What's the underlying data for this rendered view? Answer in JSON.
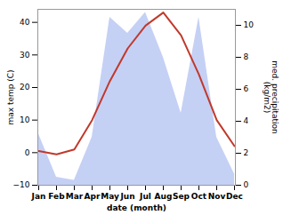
{
  "chart_data": {
    "type": "line",
    "xlabel": "date (month)",
    "ylabel": "max temp (C)",
    "y2label": "med. precipitation\n(kg/m2)",
    "categories": [
      "Jan",
      "Feb",
      "Mar",
      "Apr",
      "May",
      "Jun",
      "Jul",
      "Aug",
      "Sep",
      "Oct",
      "Nov",
      "Dec"
    ],
    "series": [
      {
        "type": "area",
        "axis": "y2",
        "color": "#c5d0f5",
        "values": [
          3.2,
          0.5,
          0.3,
          3.0,
          10.5,
          9.5,
          10.8,
          8.0,
          4.5,
          10.5,
          3.0,
          0.7
        ]
      },
      {
        "type": "line",
        "color": "#c0392b",
        "values": [
          0.5,
          -0.5,
          1.0,
          10.0,
          22.0,
          32.0,
          39.0,
          43.0,
          36.0,
          24.0,
          10.0,
          2.0
        ]
      }
    ],
    "ylim": [
      -10,
      44
    ],
    "yticks": [
      -10,
      0,
      10,
      20,
      30,
      40
    ],
    "y2lim": [
      0,
      11
    ],
    "y2ticks": [
      0,
      2,
      4,
      6,
      8,
      10
    ],
    "grid": false
  }
}
